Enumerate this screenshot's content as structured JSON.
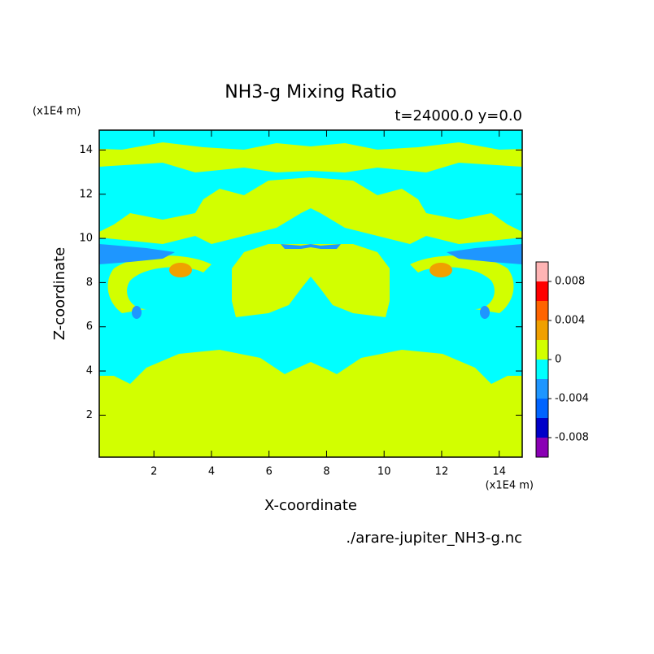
{
  "chart_data": {
    "type": "contour",
    "title": "NH3-g Mixing Ratio",
    "subtitle": "t=24000.0 y=0.0",
    "x_label": "X-coordinate",
    "y_label": "Z-coordinate",
    "x_unit": "(x1E4 m)",
    "y_unit": "(x1E4 m)",
    "footer": "./arare-jupiter_NH3-g.nc",
    "xlim": [
      0.1,
      14.8
    ],
    "ylim": [
      0.1,
      14.9
    ],
    "xticks": [
      2,
      4,
      6,
      8,
      10,
      12,
      14
    ],
    "yticks": [
      2,
      4,
      6,
      8,
      10,
      12,
      14
    ],
    "levels": [
      -0.01,
      -0.008,
      -0.006,
      -0.004,
      -0.002,
      0,
      0.002,
      0.004,
      0.006,
      0.008,
      0.01
    ],
    "colors": [
      "#8a00b4",
      "#0000c8",
      "#0064ff",
      "#1e96ff",
      "#00ffff",
      "#d2ff00",
      "#f0a000",
      "#ff6400",
      "#ff0000",
      "#ffb4b4"
    ],
    "colorbar_ticks": [
      -0.008,
      -0.004,
      0,
      0.004,
      0.008
    ]
  }
}
